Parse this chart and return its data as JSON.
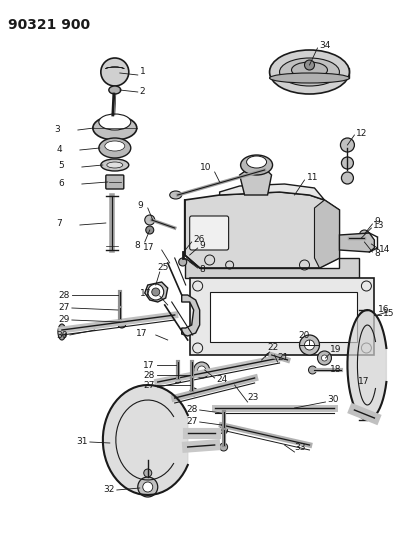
{
  "title": "90321 900",
  "bg_color": "#ffffff",
  "line_color": "#1a1a1a",
  "title_fontsize": 10,
  "label_fontsize": 6.5,
  "figsize": [
    3.98,
    5.33
  ],
  "dpi": 100
}
